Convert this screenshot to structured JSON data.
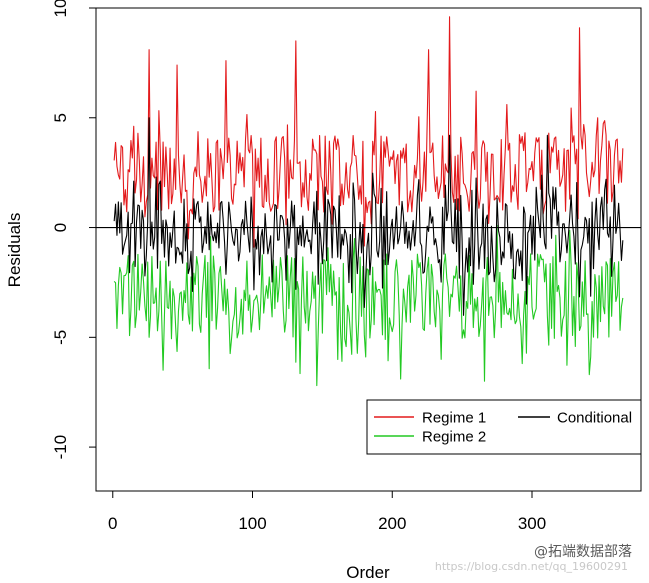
{
  "chart_data": {
    "type": "line",
    "title": "",
    "xlabel": "Order",
    "ylabel": "Residuals",
    "xlim": [
      -12,
      378
    ],
    "ylim": [
      -12,
      10
    ],
    "xticks": [
      0,
      100,
      200,
      300
    ],
    "yticks": [
      -10,
      -5,
      0,
      5,
      10
    ],
    "xtick_labels": [
      "0",
      "100",
      "200",
      "300"
    ],
    "ytick_labels": [
      "-10",
      "-5",
      "0",
      "5",
      "10"
    ],
    "reference_line": {
      "y": 0,
      "color": "#000000"
    },
    "n_points": 365,
    "legend": {
      "position": "bottom-right",
      "entries": [
        {
          "label": "Regime 1",
          "color": "#e31a1c"
        },
        {
          "label": "Regime 2",
          "color": "#22c922"
        },
        {
          "label": "Conditional",
          "color": "#000000"
        }
      ]
    },
    "series": [
      {
        "name": "Regime 1",
        "color": "#e31a1c",
        "values_summary": "365 noisy residuals, mostly between 0 and 6, peaks near 8.1 (x~25), 8.5 (x~130), 9.6 (x~240), 9.1 (x~333), lows near -1"
      },
      {
        "name": "Regime 2",
        "color": "#22c922",
        "values_summary": "365 noisy residuals, mostly between -6 and 0, lows near -6.5 (x~35), -7.2 (x~145), -7.0 (x~265), -6.7 (x~340)"
      },
      {
        "name": "Conditional",
        "color": "#000000",
        "values_summary": "365 noisy residuals around 0, roughly -4 to 5, peak ~5 at x~25, low ~-4 at x~250"
      }
    ],
    "peaks": {
      "Regime 1": [
        [
          25,
          8.1
        ],
        [
          45,
          7.4
        ],
        [
          80,
          7.6
        ],
        [
          130,
          8.5
        ],
        [
          225,
          8.1
        ],
        [
          240,
          9.6
        ],
        [
          333,
          9.1
        ]
      ],
      "Regime 2": [
        [
          35,
          -6.5
        ],
        [
          145,
          -7.2
        ],
        [
          205,
          -6.9
        ],
        [
          265,
          -7.0
        ],
        [
          340,
          -6.7
        ]
      ],
      "Conditional": [
        [
          25,
          5.0
        ],
        [
          240,
          4.2
        ],
        [
          310,
          4.2
        ],
        [
          250,
          -4.0
        ]
      ]
    }
  },
  "watermark": {
    "faint_url": "https://blog.csdn.net/qq_19600291",
    "brand": "@拓端数据部落"
  }
}
